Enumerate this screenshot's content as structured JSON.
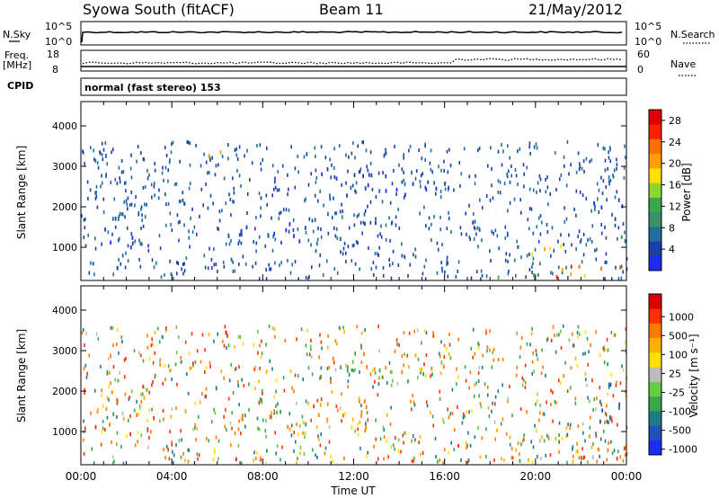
{
  "header": {
    "station": "Syowa South (fitACF)",
    "beam": "Beam 11",
    "date": "21/May/2012"
  },
  "top_panels": {
    "nsky_label": "N.Sky",
    "nsky_tick_top": "10^5",
    "nsky_tick_bottom": "10^0",
    "nsearch_label": "N.Search",
    "freq_label_1": "Freq.",
    "freq_label_2": "[MHz]",
    "freq_tick_top": "18",
    "freq_tick_bottom": "8",
    "nave_label": "Nave",
    "nave_tick_top": "60",
    "nave_tick_bottom": "0",
    "cpid_label": "CPID",
    "cpid_text": "normal (fast stereo) 153"
  },
  "chart_data": [
    {
      "type": "heatmap",
      "name": "power",
      "xlabel": "",
      "ylabel": "Slant Range [km]",
      "x_ticks": [
        "00:00",
        "04:00",
        "08:00",
        "12:00",
        "16:00",
        "20:00",
        "00:00"
      ],
      "x_range_hours": [
        0,
        24
      ],
      "y_ticks": [
        1000,
        2000,
        3000,
        4000
      ],
      "y_range_km": [
        180,
        4600
      ],
      "colorbar": {
        "label": "Power [dB]",
        "ticks": [
          4,
          8,
          12,
          16,
          20,
          24,
          28
        ],
        "range": [
          0,
          30
        ],
        "colors": [
          "#1e2cf0",
          "#1a3fa8",
          "#1f6e9c",
          "#3d8f6a",
          "#3aa84a",
          "#8cd631",
          "#ffe000",
          "#ffa000",
          "#ff7000",
          "#ff2000",
          "#dd0000"
        ]
      },
      "regions": [
        {
          "t0": 0.6,
          "t1": 2.2,
          "r0": 1500,
          "r1": 1900,
          "power": 6
        },
        {
          "t0": 0.8,
          "t1": 3.2,
          "r0": 900,
          "r1": 1500,
          "power": 5
        },
        {
          "t0": 5.5,
          "t1": 7.0,
          "r0": 3300,
          "r1": 3500,
          "power": 22
        },
        {
          "t0": 7.0,
          "t1": 11.5,
          "r0": 1100,
          "r1": 1700,
          "power": 5
        },
        {
          "t0": 10.0,
          "t1": 13.0,
          "r0": 1600,
          "r1": 1900,
          "power": 6
        },
        {
          "t0": 10.5,
          "t1": 16.0,
          "r0": 2200,
          "r1": 3000,
          "power": 4
        },
        {
          "t0": 16.3,
          "t1": 18.5,
          "r0": 1500,
          "r1": 1750,
          "power": 6
        },
        {
          "t0": 16.5,
          "t1": 20.0,
          "r0": 230,
          "r1": 400,
          "power": 9
        },
        {
          "t0": 19.8,
          "t1": 21.5,
          "r0": 700,
          "r1": 1100,
          "power": 18
        },
        {
          "t0": 20.5,
          "t1": 24.0,
          "r0": 300,
          "r1": 700,
          "power": 22
        },
        {
          "t0": 22.5,
          "t1": 24.0,
          "r0": 1200,
          "r1": 2300,
          "power": 6
        }
      ]
    },
    {
      "type": "heatmap",
      "name": "velocity",
      "xlabel": "Time UT",
      "ylabel": "Slant Range [km]",
      "x_ticks": [
        "00:00",
        "04:00",
        "08:00",
        "12:00",
        "16:00",
        "20:00",
        "00:00"
      ],
      "x_range_hours": [
        0,
        24
      ],
      "y_ticks": [
        1000,
        2000,
        3000,
        4000
      ],
      "y_range_km": [
        180,
        4600
      ],
      "colorbar": {
        "label": "Velocity [m s⁻¹]",
        "ticks": [
          "1000",
          "500",
          "100",
          "25",
          "-25",
          "-100",
          "-500",
          "-1000"
        ],
        "colors": [
          "#1e2cf0",
          "#2050b8",
          "#1f7a88",
          "#3aa84a",
          "#66cc44",
          "#bbbbbb",
          "#ffe000",
          "#ffb000",
          "#ff7a00",
          "#ff3000",
          "#dd0000"
        ]
      },
      "regions": [
        {
          "t0": 0.6,
          "t1": 3.2,
          "r0": 900,
          "r1": 1900,
          "velocity": -100
        },
        {
          "t0": 5.5,
          "t1": 7.0,
          "r0": 3300,
          "r1": 3500,
          "velocity": -500
        },
        {
          "t0": 7.0,
          "t1": 13.0,
          "r0": 1100,
          "r1": 1900,
          "velocity": -50
        },
        {
          "t0": 10.5,
          "t1": 16.0,
          "r0": 2200,
          "r1": 3000,
          "velocity": 0
        },
        {
          "t0": 16.5,
          "t1": 20.0,
          "r0": 230,
          "r1": 400,
          "velocity": 100
        },
        {
          "t0": 19.8,
          "t1": 21.5,
          "r0": 700,
          "r1": 1100,
          "velocity": 200
        },
        {
          "t0": 20.5,
          "t1": 24.0,
          "r0": 300,
          "r1": 700,
          "velocity": -200
        },
        {
          "t0": 22.5,
          "t1": 24.0,
          "r0": 1200,
          "r1": 2300,
          "velocity": 500
        }
      ]
    }
  ]
}
